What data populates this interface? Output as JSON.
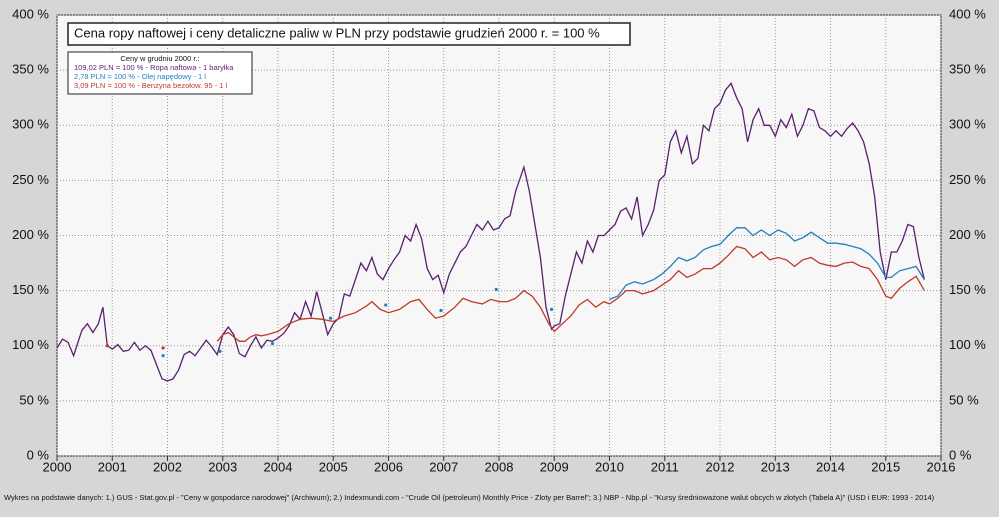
{
  "chart_data": {
    "type": "line",
    "title": "Cena ropy naftowej i ceny detaliczne paliw w PLN przy podstawie grudzień 2000 r. = 100 %",
    "legend_title": "Ceny w grudniu 2000 r.:",
    "source": "Wykres na podstawie danych:  1.) GUS - Stat.gov.pl - \"Ceny w gospodarce narodowej\" (Archiwum); 2.)  Indexmundi.com - \"Crude Oil (petroleum) Monthly Price - Zloty per Barrel\"; 3.) NBP - Nbp.pl - \"Kursy średnioważone walut obcych w złotych (Tabela A)\" (USD i EUR: 1993 - 2014)",
    "xlim": [
      2000,
      2016
    ],
    "xticks": [
      2000,
      2001,
      2002,
      2003,
      2004,
      2005,
      2006,
      2007,
      2008,
      2009,
      2010,
      2011,
      2012,
      2013,
      2014,
      2015,
      2016
    ],
    "ylim": [
      0,
      400
    ],
    "yticks": [
      {
        "value": 0,
        "label": "0 %"
      },
      {
        "value": 50,
        "label": "50 %"
      },
      {
        "value": 100,
        "label": "100 %"
      },
      {
        "value": 150,
        "label": "150 %"
      },
      {
        "value": 200,
        "label": "200 %"
      },
      {
        "value": 250,
        "label": "250 %"
      },
      {
        "value": 300,
        "label": "300 %"
      },
      {
        "value": 350,
        "label": "350 %"
      },
      {
        "value": 400,
        "label": "400 %"
      }
    ],
    "grid": true,
    "series": [
      {
        "name": "109,02 PLN = 100 %  -  Ropa naftowa - 1 baryłka",
        "color": "#5a1f6e",
        "x": [
          2000.0,
          2000.1,
          2000.2,
          2000.3,
          2000.45,
          2000.55,
          2000.65,
          2000.75,
          2000.83,
          2000.91,
          2001.0,
          2001.1,
          2001.2,
          2001.3,
          2001.4,
          2001.5,
          2001.6,
          2001.7,
          2001.8,
          2001.9,
          2002.0,
          2002.1,
          2002.2,
          2002.3,
          2002.4,
          2002.5,
          2002.6,
          2002.7,
          2002.8,
          2002.9,
          2003.0,
          2003.1,
          2003.2,
          2003.3,
          2003.4,
          2003.5,
          2003.6,
          2003.7,
          2003.8,
          2003.9,
          2004.0,
          2004.1,
          2004.2,
          2004.3,
          2004.4,
          2004.5,
          2004.6,
          2004.7,
          2004.8,
          2004.9,
          2005.0,
          2005.1,
          2005.2,
          2005.3,
          2005.4,
          2005.5,
          2005.6,
          2005.7,
          2005.8,
          2005.9,
          2006.0,
          2006.1,
          2006.2,
          2006.3,
          2006.4,
          2006.5,
          2006.6,
          2006.7,
          2006.8,
          2006.9,
          2007.0,
          2007.1,
          2007.2,
          2007.3,
          2007.4,
          2007.5,
          2007.6,
          2007.7,
          2007.8,
          2007.9,
          2008.0,
          2008.1,
          2008.2,
          2008.3,
          2008.45,
          2008.55,
          2008.65,
          2008.75,
          2008.85,
          2008.95,
          2009.0,
          2009.1,
          2009.2,
          2009.3,
          2009.4,
          2009.5,
          2009.6,
          2009.7,
          2009.8,
          2009.9,
          2010.0,
          2010.1,
          2010.2,
          2010.3,
          2010.4,
          2010.5,
          2010.6,
          2010.7,
          2010.8,
          2010.9,
          2011.0,
          2011.1,
          2011.2,
          2011.3,
          2011.4,
          2011.5,
          2011.6,
          2011.7,
          2011.8,
          2011.9,
          2012.0,
          2012.1,
          2012.2,
          2012.3,
          2012.4,
          2012.5,
          2012.6,
          2012.7,
          2012.8,
          2012.9,
          2013.0,
          2013.1,
          2013.2,
          2013.3,
          2013.4,
          2013.5,
          2013.6,
          2013.7,
          2013.8,
          2013.9,
          2014.0,
          2014.1,
          2014.2,
          2014.3,
          2014.4,
          2014.5,
          2014.6,
          2014.7,
          2014.8,
          2014.9,
          2015.0,
          2015.1,
          2015.2,
          2015.3,
          2015.4,
          2015.5,
          2015.6,
          2015.7
        ],
        "values": [
          98,
          106,
          103,
          91,
          114,
          120,
          112,
          120,
          135,
          100,
          97,
          101,
          95,
          96,
          103,
          96,
          100,
          96,
          83,
          70,
          68,
          70,
          78,
          92,
          95,
          91,
          98,
          105,
          99,
          92,
          110,
          117,
          110,
          93,
          90,
          100,
          108,
          98,
          105,
          104,
          107,
          111,
          118,
          130,
          124,
          140,
          127,
          149,
          130,
          110,
          120,
          125,
          147,
          145,
          160,
          175,
          168,
          180,
          165,
          160,
          170,
          178,
          185,
          200,
          195,
          210,
          197,
          170,
          160,
          164,
          148,
          165,
          175,
          185,
          190,
          200,
          210,
          205,
          213,
          205,
          207,
          215,
          218,
          240,
          262,
          240,
          210,
          180,
          135,
          115,
          118,
          120,
          145,
          165,
          185,
          175,
          195,
          185,
          200,
          200,
          205,
          210,
          222,
          225,
          215,
          235,
          200,
          210,
          223,
          250,
          255,
          285,
          295,
          275,
          290,
          265,
          270,
          300,
          295,
          315,
          320,
          332,
          338,
          325,
          315,
          285,
          305,
          315,
          300,
          300,
          290,
          305,
          298,
          310,
          290,
          300,
          315,
          313,
          298,
          295,
          290,
          295,
          290,
          297,
          302,
          295,
          285,
          265,
          235,
          185,
          160,
          185,
          185,
          195,
          210,
          208,
          180,
          160
        ]
      },
      {
        "name": "2,78 PLN = 100 %  -  Olej napędowy - 1 l",
        "color": "#1f7fbf",
        "x": [
          2001.92,
          null,
          2002.95,
          null,
          2003.9,
          null,
          2004.95,
          null,
          2005.95,
          null,
          2006.95,
          null,
          2007.95,
          null,
          2008.95,
          null,
          2010.0,
          2010.15,
          2010.3,
          2010.45,
          2010.6,
          2010.8,
          2010.95,
          2011.1,
          2011.25,
          2011.4,
          2011.55,
          2011.7,
          2011.85,
          2012.0,
          2012.15,
          2012.3,
          2012.45,
          2012.6,
          2012.75,
          2012.9,
          2013.05,
          2013.2,
          2013.35,
          2013.5,
          2013.65,
          2013.8,
          2013.95,
          2014.1,
          2014.25,
          2014.4,
          2014.55,
          2014.7,
          2014.85,
          2015.0,
          2015.1,
          2015.25,
          2015.4,
          2015.55,
          2015.7
        ],
        "values": [
          91,
          null,
          95,
          null,
          102,
          null,
          125,
          null,
          137,
          null,
          132,
          null,
          151,
          null,
          133,
          null,
          142,
          145,
          155,
          158,
          156,
          160,
          165,
          172,
          180,
          177,
          180,
          187,
          190,
          192,
          200,
          207,
          207,
          200,
          205,
          200,
          205,
          202,
          195,
          198,
          203,
          198,
          193,
          193,
          192,
          190,
          188,
          183,
          175,
          162,
          162,
          168,
          170,
          172,
          160
        ]
      },
      {
        "name": "3,09 PLN = 100 %  -  Benzyna bezołow. 95 - 1 l",
        "color": "#c0392b",
        "x": [
          2000.91,
          null,
          2001.92,
          null,
          2002.9,
          2003.0,
          2003.1,
          2003.2,
          2003.3,
          2003.4,
          2003.5,
          2003.6,
          2003.7,
          2003.8,
          2004.0,
          2004.2,
          2004.4,
          2004.6,
          2004.8,
          2005.0,
          2005.2,
          2005.4,
          2005.6,
          2005.7,
          2005.85,
          2006.0,
          2006.2,
          2006.4,
          2006.55,
          2006.7,
          2006.85,
          2007.0,
          2007.2,
          2007.35,
          2007.5,
          2007.7,
          2007.85,
          2008.0,
          2008.15,
          2008.3,
          2008.45,
          2008.6,
          2008.75,
          2008.9,
          2009.0,
          2009.15,
          2009.3,
          2009.45,
          2009.6,
          2009.75,
          2009.9,
          2010.0,
          2010.15,
          2010.3,
          2010.45,
          2010.6,
          2010.8,
          2010.95,
          2011.1,
          2011.25,
          2011.4,
          2011.55,
          2011.7,
          2011.85,
          2012.0,
          2012.15,
          2012.3,
          2012.45,
          2012.6,
          2012.75,
          2012.9,
          2013.05,
          2013.2,
          2013.35,
          2013.5,
          2013.65,
          2013.8,
          2013.95,
          2014.1,
          2014.25,
          2014.4,
          2014.55,
          2014.7,
          2014.85,
          2015.0,
          2015.1,
          2015.25,
          2015.4,
          2015.55,
          2015.7
        ],
        "values": [
          100,
          null,
          98,
          null,
          104,
          110,
          112,
          108,
          104,
          104,
          108,
          110,
          109,
          110,
          113,
          120,
          124,
          125,
          124,
          122,
          127,
          130,
          136,
          140,
          133,
          130,
          133,
          140,
          142,
          133,
          125,
          127,
          135,
          143,
          140,
          138,
          142,
          140,
          140,
          143,
          150,
          145,
          135,
          120,
          113,
          120,
          127,
          137,
          142,
          135,
          140,
          138,
          143,
          150,
          150,
          147,
          150,
          155,
          160,
          168,
          162,
          165,
          170,
          170,
          175,
          182,
          190,
          188,
          180,
          185,
          178,
          180,
          178,
          172,
          178,
          180,
          175,
          173,
          172,
          175,
          176,
          172,
          170,
          160,
          145,
          143,
          152,
          158,
          163,
          150
        ]
      }
    ]
  }
}
